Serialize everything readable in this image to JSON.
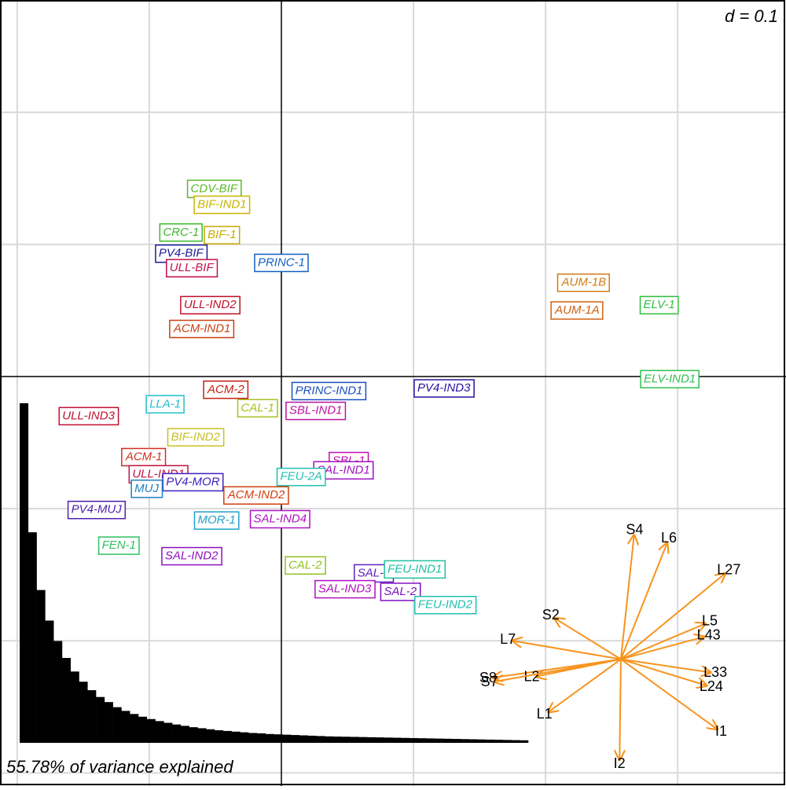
{
  "chart_data": {
    "type": "scatter",
    "annotation": "d = 0.1",
    "xlim": [
      -0.213,
      0.382
    ],
    "ylim": [
      -0.31,
      0.285
    ],
    "xticks": [
      -0.2,
      -0.1,
      0,
      0.1,
      0.2,
      0.3
    ],
    "yticks": [
      -0.3,
      -0.2,
      -0.1,
      0,
      0.1,
      0.2
    ],
    "grid": true,
    "series": [
      {
        "name": "CDV-BIF",
        "color": "#5cb82a",
        "x": [
          -0.051
        ],
        "values": [
          0.142
        ]
      },
      {
        "name": "BIF-IND1",
        "color": "#c8b400",
        "x": [
          -0.045
        ],
        "values": [
          0.13
        ]
      },
      {
        "name": "CRC-1",
        "color": "#3cba2c",
        "x": [
          -0.076
        ],
        "values": [
          0.109
        ]
      },
      {
        "name": "BIF-1",
        "color": "#c8a800",
        "x": [
          -0.045
        ],
        "values": [
          0.107
        ]
      },
      {
        "name": "PV4-BIF",
        "color": "#1a1a9a",
        "x": [
          -0.076
        ],
        "values": [
          0.093
        ]
      },
      {
        "name": "PRINC-1",
        "color": "#1060c0",
        "x": [
          0.0
        ],
        "values": [
          0.086
        ]
      },
      {
        "name": "ULL-BIF",
        "color": "#c0104a",
        "x": [
          -0.068
        ],
        "values": [
          0.082
        ]
      },
      {
        "name": "ULL-IND2",
        "color": "#c0102a",
        "x": [
          -0.054
        ],
        "values": [
          0.054
        ]
      },
      {
        "name": "ACM-IND1",
        "color": "#c84010",
        "x": [
          -0.06
        ],
        "values": [
          0.036
        ]
      },
      {
        "name": "AUM-1B",
        "color": "#d07a10",
        "x": [
          0.229
        ],
        "values": [
          0.071
        ]
      },
      {
        "name": "AUM-1A",
        "color": "#d06010",
        "x": [
          0.224
        ],
        "values": [
          0.05
        ]
      },
      {
        "name": "ELV-1",
        "color": "#30c040",
        "x": [
          0.286
        ],
        "values": [
          0.054
        ]
      },
      {
        "name": "ELV-IND1",
        "color": "#30c050",
        "x": [
          0.294
        ],
        "values": [
          -0.002
        ]
      },
      {
        "name": "ACM-2",
        "color": "#c82010",
        "x": [
          -0.042
        ],
        "values": [
          -0.01
        ]
      },
      {
        "name": "PRINC-IND1",
        "color": "#1a50c0",
        "x": [
          0.036
        ],
        "values": [
          -0.011
        ]
      },
      {
        "name": "PV4-IND3",
        "color": "#2a10a0",
        "x": [
          0.123
        ],
        "values": [
          -0.009
        ]
      },
      {
        "name": "CAL-1",
        "color": "#a8c020",
        "x": [
          -0.018
        ],
        "values": [
          -0.024
        ]
      },
      {
        "name": "SBL-IND1",
        "color": "#c010a0",
        "x": [
          0.026
        ],
        "values": [
          -0.026
        ]
      },
      {
        "name": "ULL-IND3",
        "color": "#c01030",
        "x": [
          -0.146
        ],
        "values": [
          -0.03
        ]
      },
      {
        "name": "LLA-1",
        "color": "#20c0c8",
        "x": [
          -0.088
        ],
        "values": [
          -0.021
        ]
      },
      {
        "name": "BIF-IND2",
        "color": "#c8c020",
        "x": [
          -0.065
        ],
        "values": [
          -0.046
        ]
      },
      {
        "name": "ACM-1",
        "color": "#d03020",
        "x": [
          -0.104
        ],
        "values": [
          -0.061
        ]
      },
      {
        "name": "SBL-1",
        "color": "#c010b0",
        "x": [
          0.051
        ],
        "values": [
          -0.064
        ]
      },
      {
        "name": "SAL-IND1",
        "color": "#a010c0",
        "x": [
          0.047
        ],
        "values": [
          -0.071
        ]
      },
      {
        "name": "FEU-2A",
        "color": "#20c0b0",
        "x": [
          0.015
        ],
        "values": [
          -0.076
        ]
      },
      {
        "name": "ULL-IND1",
        "color": "#c01040",
        "x": [
          -0.093
        ],
        "values": [
          -0.074
        ]
      },
      {
        "name": "PV4-MOR",
        "color": "#4020c0",
        "x": [
          -0.067
        ],
        "values": [
          -0.08
        ]
      },
      {
        "name": "MUJ",
        "color": "#2080c0",
        "x": [
          -0.102
        ],
        "values": [
          -0.085
        ]
      },
      {
        "name": "ACM-IND2",
        "color": "#d04010",
        "x": [
          -0.019
        ],
        "values": [
          -0.09
        ]
      },
      {
        "name": "PV4-MUJ",
        "color": "#5020b0",
        "x": [
          -0.14
        ],
        "values": [
          -0.101
        ]
      },
      {
        "name": "SAL-IND4",
        "color": "#b010c0",
        "x": [
          -0.001
        ],
        "values": [
          -0.108
        ]
      },
      {
        "name": "MOR-1",
        "color": "#20a0c8",
        "x": [
          -0.049
        ],
        "values": [
          -0.109
        ]
      },
      {
        "name": "FEN-1",
        "color": "#30c060",
        "x": [
          -0.123
        ],
        "values": [
          -0.128
        ]
      },
      {
        "name": "SAL-IND2",
        "color": "#9010c0",
        "x": [
          -0.068
        ],
        "values": [
          -0.136
        ]
      },
      {
        "name": "CAL-2",
        "color": "#90c020",
        "x": [
          0.018
        ],
        "values": [
          -0.143
        ]
      },
      {
        "name": "SAL-1",
        "color": "#6020c0",
        "x": [
          0.07
        ],
        "values": [
          -0.149
        ]
      },
      {
        "name": "FEU-IND1",
        "color": "#20c0a0",
        "x": [
          0.101
        ],
        "values": [
          -0.146
        ]
      },
      {
        "name": "SAL-IND3",
        "color": "#b010c0",
        "x": [
          0.048
        ],
        "values": [
          -0.161
        ]
      },
      {
        "name": "SAL-2",
        "color": "#8010c0",
        "x": [
          0.09
        ],
        "values": [
          -0.163
        ]
      },
      {
        "name": "FEU-IND2",
        "color": "#20c0b0",
        "x": [
          0.124
        ],
        "values": [
          -0.173
        ]
      }
    ],
    "variables": {
      "color": "#f7941d",
      "origin": [
        0.257,
        -0.214
      ],
      "names": [
        "S4",
        "L6",
        "L27",
        "S2",
        "L5",
        "L43",
        "L7",
        "L33",
        "S8",
        "L2",
        "S7",
        "L24",
        "L1",
        "I1",
        "I2"
      ],
      "x": [
        0.01,
        0.035,
        0.079,
        -0.05,
        0.064,
        0.063,
        -0.082,
        0.068,
        -0.097,
        -0.064,
        -0.096,
        0.065,
        -0.055,
        0.073,
        -0.001
      ],
      "y": [
        0.094,
        0.088,
        0.065,
        0.031,
        0.027,
        0.017,
        0.014,
        -0.01,
        -0.014,
        -0.013,
        -0.017,
        -0.02,
        -0.04,
        -0.053,
        -0.076
      ]
    },
    "eigenvalues": {
      "caption": "55.78% of variance explained",
      "values": [
        100,
        62,
        45,
        36,
        30,
        25,
        21,
        18,
        15.5,
        13.5,
        12,
        10.5,
        9.4,
        8.5,
        7.7,
        7,
        6.4,
        5.9,
        5.4,
        5,
        4.6,
        4.3,
        4,
        3.7,
        3.5,
        3.3,
        3.1,
        2.9,
        2.8,
        2.6,
        2.5,
        2.4,
        2.3,
        2.2,
        2.1,
        2,
        1.9,
        1.85,
        1.8,
        1.75,
        1.7,
        1.65,
        1.6,
        1.55,
        1.5,
        1.45,
        1.4,
        1.35,
        1.3,
        1.25,
        1.2,
        1.15,
        1.1,
        1.05,
        1.0,
        0.95,
        0.9,
        0.85,
        0.8,
        0.75
      ]
    }
  }
}
